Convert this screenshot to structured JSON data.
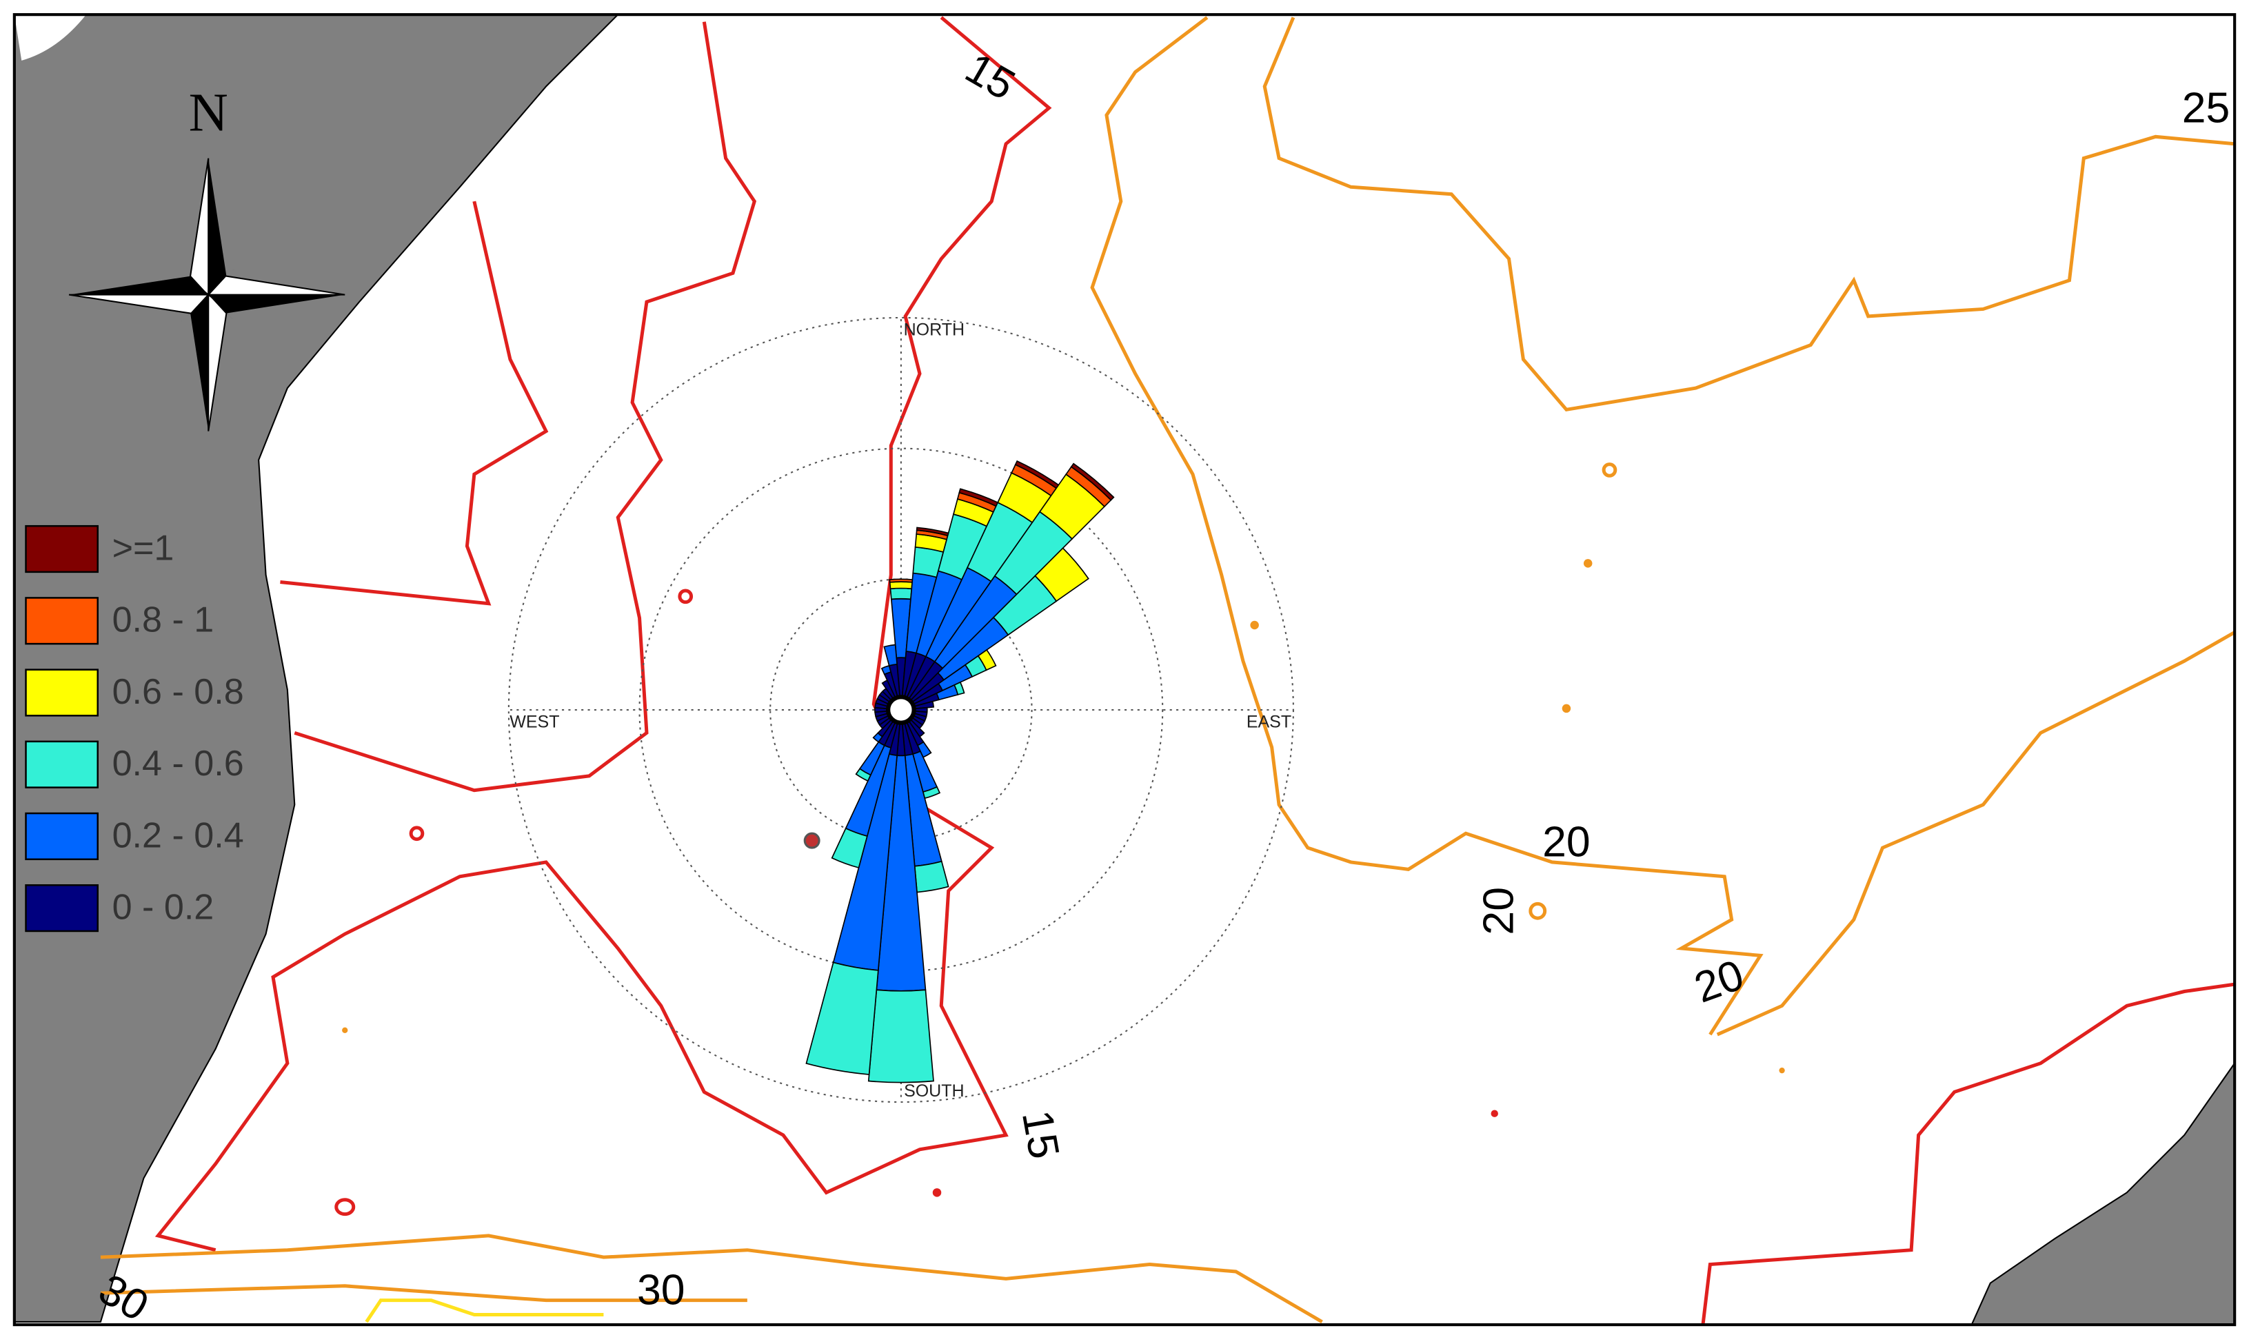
{
  "map": {
    "compass_label": "N",
    "contour_labels": [
      "15",
      "15",
      "25",
      "20",
      "20",
      "20",
      "30",
      "30"
    ]
  },
  "legend": {
    "bins": [
      {
        "label": "0 - 0.2",
        "color": "#00007f"
      },
      {
        "label": "0.2 - 0.4",
        "color": "#0066ff"
      },
      {
        "label": "0.4 - 0.6",
        "color": "#33f0d6"
      },
      {
        "label": "0.6 - 0.8",
        "color": "#ffff00"
      },
      {
        "label": "0.8 - 1",
        "color": "#ff5500"
      },
      {
        "label": ">=1",
        "color": "#800000"
      }
    ]
  },
  "wind_rose": {
    "direction_labels": {
      "north": "NORTH",
      "east": "EAST",
      "south": "SOUTH",
      "west": "WEST"
    },
    "rings": [
      1,
      2,
      3
    ],
    "sectors": [
      {
        "direction": 0,
        "values": [
          0.4,
          0.45,
          0.08,
          0.05,
          0.02,
          0
        ]
      },
      {
        "direction": 10,
        "values": [
          0.45,
          0.6,
          0.2,
          0.1,
          0.03,
          0.02
        ]
      },
      {
        "direction": 20,
        "values": [
          0.45,
          0.65,
          0.45,
          0.12,
          0.05,
          0.03
        ]
      },
      {
        "direction": 30,
        "values": [
          0.45,
          0.75,
          0.55,
          0.25,
          0.07,
          0.03
        ]
      },
      {
        "direction": 40,
        "values": [
          0.45,
          0.8,
          0.6,
          0.35,
          0.07,
          0.03
        ]
      },
      {
        "direction": 50,
        "values": [
          0.4,
          0.6,
          0.45,
          0.3,
          0,
          0
        ]
      },
      {
        "direction": 60,
        "values": [
          0.35,
          0.25,
          0.12,
          0.08,
          0,
          0
        ]
      },
      {
        "direction": 70,
        "values": [
          0.3,
          0.15,
          0.05,
          0,
          0,
          0
        ]
      },
      {
        "direction": 80,
        "values": [
          0.25,
          0,
          0,
          0,
          0,
          0
        ]
      },
      {
        "direction": 90,
        "values": [
          0.2,
          0,
          0,
          0,
          0,
          0
        ]
      },
      {
        "direction": 100,
        "values": [
          0.2,
          0,
          0,
          0,
          0,
          0
        ]
      },
      {
        "direction": 110,
        "values": [
          0.2,
          0,
          0,
          0,
          0,
          0
        ]
      },
      {
        "direction": 120,
        "values": [
          0.2,
          0,
          0,
          0,
          0,
          0
        ]
      },
      {
        "direction": 130,
        "values": [
          0.2,
          0,
          0,
          0,
          0,
          0
        ]
      },
      {
        "direction": 140,
        "values": [
          0.25,
          0,
          0,
          0,
          0,
          0
        ]
      },
      {
        "direction": 150,
        "values": [
          0.3,
          0.1,
          0,
          0,
          0,
          0
        ]
      },
      {
        "direction": 160,
        "values": [
          0.35,
          0.3,
          0.05,
          0,
          0,
          0
        ]
      },
      {
        "direction": 170,
        "values": [
          0.35,
          0.85,
          0.2,
          0,
          0,
          0
        ]
      },
      {
        "direction": 180,
        "values": [
          0.35,
          1.8,
          0.7,
          0,
          0,
          0
        ]
      },
      {
        "direction": 190,
        "values": [
          0.35,
          1.65,
          0.8,
          0,
          0,
          0
        ]
      },
      {
        "direction": 200,
        "values": [
          0.3,
          0.7,
          0.25,
          0,
          0,
          0
        ]
      },
      {
        "direction": 210,
        "values": [
          0.3,
          0.25,
          0.05,
          0,
          0,
          0
        ]
      },
      {
        "direction": 220,
        "values": [
          0.25,
          0.05,
          0,
          0,
          0,
          0
        ]
      },
      {
        "direction": 230,
        "values": [
          0.2,
          0,
          0,
          0,
          0,
          0
        ]
      },
      {
        "direction": 240,
        "values": [
          0.2,
          0,
          0,
          0,
          0,
          0
        ]
      },
      {
        "direction": 250,
        "values": [
          0.2,
          0,
          0,
          0,
          0,
          0
        ]
      },
      {
        "direction": 260,
        "values": [
          0.2,
          0,
          0,
          0,
          0,
          0
        ]
      },
      {
        "direction": 270,
        "values": [
          0.2,
          0,
          0,
          0,
          0,
          0
        ]
      },
      {
        "direction": 280,
        "values": [
          0.2,
          0,
          0,
          0,
          0,
          0
        ]
      },
      {
        "direction": 290,
        "values": [
          0.2,
          0,
          0,
          0,
          0,
          0
        ]
      },
      {
        "direction": 300,
        "values": [
          0.2,
          0,
          0,
          0,
          0,
          0
        ]
      },
      {
        "direction": 310,
        "values": [
          0.2,
          0,
          0,
          0,
          0,
          0
        ]
      },
      {
        "direction": 320,
        "values": [
          0.2,
          0,
          0,
          0,
          0,
          0
        ]
      },
      {
        "direction": 330,
        "values": [
          0.25,
          0,
          0,
          0,
          0,
          0
        ]
      },
      {
        "direction": 340,
        "values": [
          0.3,
          0.05,
          0,
          0,
          0,
          0
        ]
      },
      {
        "direction": 350,
        "values": [
          0.35,
          0.15,
          0,
          0,
          0,
          0
        ]
      }
    ]
  }
}
